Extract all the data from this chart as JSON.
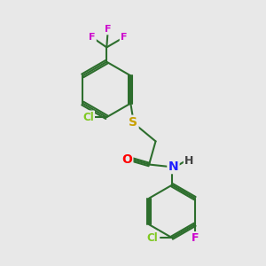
{
  "background_color": "#e8e8e8",
  "bond_color": "#2d6e2d",
  "atom_colors": {
    "Cl": "#7ec820",
    "F": "#cc00cc",
    "S": "#c8a000",
    "N": "#2020ff",
    "O": "#ff0000",
    "H": "#404040",
    "C": "#2d6e2d"
  },
  "figsize": [
    3.0,
    3.0
  ],
  "dpi": 100
}
